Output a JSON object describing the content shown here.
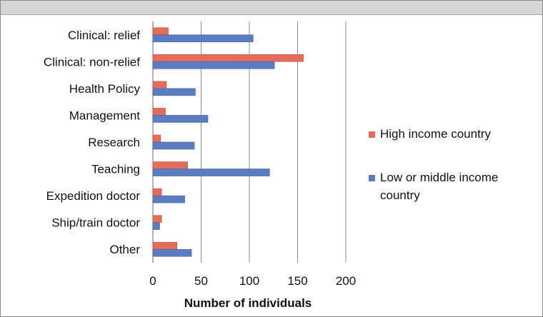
{
  "chart_data": {
    "type": "bar",
    "orientation": "horizontal",
    "categories": [
      "Clinical: relief",
      "Clinical: non-relief",
      "Health Policy",
      "Management",
      "Research",
      "Teaching",
      "Expedition doctor",
      "Ship/train doctor",
      "Other"
    ],
    "series": [
      {
        "name": "High income country",
        "color": "#e46c5a",
        "values": [
          16,
          156,
          14,
          13,
          8,
          36,
          9,
          9,
          25
        ]
      },
      {
        "name": "Low or middle income country",
        "color": "#5b7cc0",
        "values": [
          104,
          126,
          44,
          57,
          43,
          121,
          33,
          7,
          40
        ]
      }
    ],
    "xlabel": "Number of individuals",
    "ylabel": "",
    "xlim": [
      0,
      200
    ],
    "xticks": [
      0,
      50,
      100,
      150,
      200
    ],
    "grid": true,
    "legend": "right"
  },
  "legend_lines": {
    "high": [
      "High income country"
    ],
    "low": [
      "Low or middle income",
      "country"
    ]
  }
}
